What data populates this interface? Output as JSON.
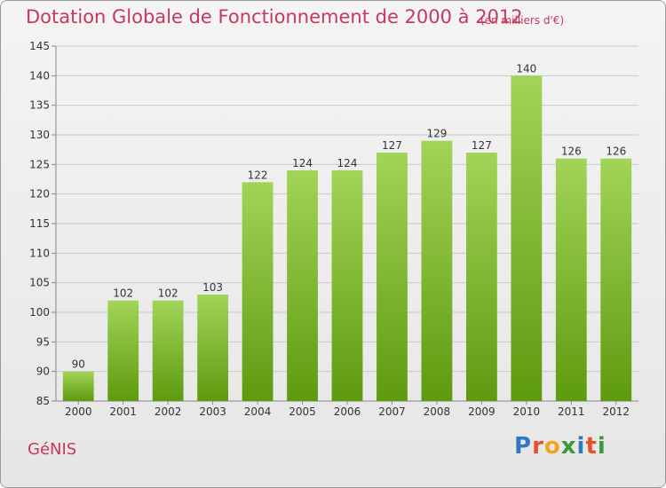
{
  "header": {
    "title": "Dotation Globale de Fonctionnement de 2000 à 2012",
    "unit": "(en milliers d'€)"
  },
  "footer": {
    "town": "GéNIS",
    "logo": "Proxiti"
  },
  "colors": {
    "accent": "#c8385c",
    "bar_top": "#9ccf4c",
    "bar_bottom": "#5f9c10",
    "grid": "#c8c8c8",
    "logo": [
      "#2f7ac0",
      "#e8502b",
      "#f0a623",
      "#3a9a3a",
      "#2f7ac0",
      "#e8502b",
      "#3a9a3a"
    ]
  },
  "chart_data": {
    "type": "bar",
    "categories": [
      "2000",
      "2001",
      "2002",
      "2003",
      "2004",
      "2005",
      "2006",
      "2007",
      "2008",
      "2009",
      "2010",
      "2011",
      "2012"
    ],
    "values": [
      90,
      102,
      102,
      103,
      122,
      124,
      124,
      127,
      129,
      127,
      140,
      126,
      126
    ],
    "ylim": [
      85,
      145
    ],
    "yticks": [
      85,
      90,
      95,
      100,
      105,
      110,
      115,
      120,
      125,
      130,
      135,
      140,
      145
    ],
    "grid": true,
    "value_labels": true
  }
}
